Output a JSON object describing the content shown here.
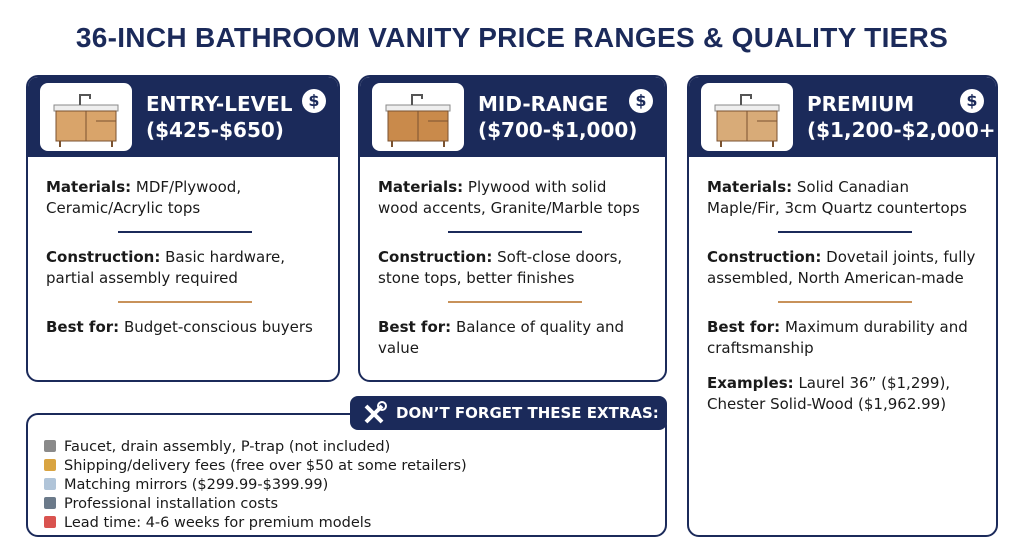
{
  "title": "36-INCH BATHROOM VANITY PRICE RANGES & QUALITY TIERS",
  "tiers": [
    {
      "name": "ENTRY-LEVEL",
      "price": "($425-$650)",
      "sections": [
        {
          "label": "Materials:",
          "text": "MDF/Plywood, Ceramic/Acrylic tops"
        },
        {
          "label": "Construction:",
          "text": "Basic hardware, partial assembly required"
        },
        {
          "label": "Best for:",
          "text": "Budget-conscious buyers"
        }
      ]
    },
    {
      "name": "MID-RANGE",
      "price": "($700-$1,000)",
      "sections": [
        {
          "label": "Materials:",
          "text": "Plywood with solid wood accents, Granite/Marble tops"
        },
        {
          "label": "Construction:",
          "text": "Soft-close doors, stone tops, better finishes"
        },
        {
          "label": "Best for:",
          "text": "Balance of quality and value"
        }
      ]
    },
    {
      "name": "PREMIUM",
      "price": "($1,200-$2,000+)",
      "sections": [
        {
          "label": "Materials:",
          "text": "Solid Canadian Maple/Fir, 3cm Quartz countertops"
        },
        {
          "label": "Construction:",
          "text": "Dovetail joints, fully assembled, North American-made"
        },
        {
          "label": "Best for:",
          "text": "Maximum durability and craftsmanship"
        },
        {
          "label": "Examples:",
          "text": "Laurel 36” ($1,299), Chester Solid-Wood ($1,962.99)"
        }
      ]
    }
  ],
  "extras": {
    "title": "DON’T FORGET THESE EXTRAS:",
    "items": [
      "Faucet, drain assembly, P-trap (not included)",
      "Shipping/delivery fees (free over $50 at some retailers)",
      "Matching mirrors ($299.99-$399.99)",
      "Professional installation costs",
      "Lead time: 4-6 weeks for premium models"
    ]
  }
}
